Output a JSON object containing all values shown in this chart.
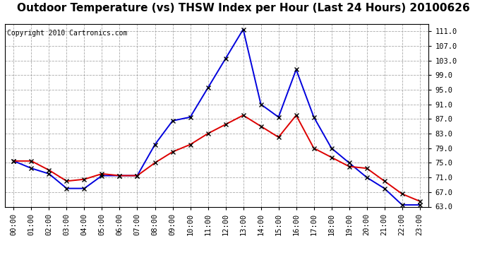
{
  "title": "Outdoor Temperature (vs) THSW Index per Hour (Last 24 Hours) 20100626",
  "copyright": "Copyright 2010 Cartronics.com",
  "hours": [
    "00:00",
    "01:00",
    "02:00",
    "03:00",
    "04:00",
    "05:00",
    "06:00",
    "07:00",
    "08:00",
    "09:00",
    "10:00",
    "11:00",
    "12:00",
    "13:00",
    "14:00",
    "15:00",
    "16:00",
    "17:00",
    "18:00",
    "19:00",
    "20:00",
    "21:00",
    "22:00",
    "23:00"
  ],
  "temp_red": [
    75.5,
    75.5,
    73.0,
    70.0,
    70.5,
    72.0,
    71.5,
    71.5,
    75.0,
    78.0,
    80.0,
    83.0,
    85.5,
    88.0,
    85.0,
    82.0,
    88.0,
    79.0,
    76.5,
    74.0,
    73.5,
    70.0,
    66.5,
    64.5
  ],
  "thsw_blue": [
    75.5,
    73.5,
    72.0,
    68.0,
    68.0,
    71.5,
    71.5,
    71.5,
    80.0,
    86.5,
    87.5,
    95.5,
    103.5,
    111.5,
    91.0,
    87.5,
    100.5,
    87.5,
    79.0,
    75.0,
    71.0,
    68.0,
    63.5,
    63.5
  ],
  "ylim_min": 63.0,
  "ylim_max": 113.0,
  "ytick_labels": [
    "63.0",
    "67.0",
    "71.0",
    "75.0",
    "79.0",
    "83.0",
    "87.0",
    "91.0",
    "95.0",
    "99.0",
    "103.0",
    "107.0",
    "111.0"
  ],
  "bg_color": "#ffffff",
  "grid_color": "#aaaaaa",
  "line_red_color": "#dd0000",
  "line_blue_color": "#0000dd",
  "marker_color": "#000000",
  "title_fontsize": 11,
  "copyright_fontsize": 7,
  "tick_fontsize": 7.5,
  "axis_bg": "#ffffff"
}
